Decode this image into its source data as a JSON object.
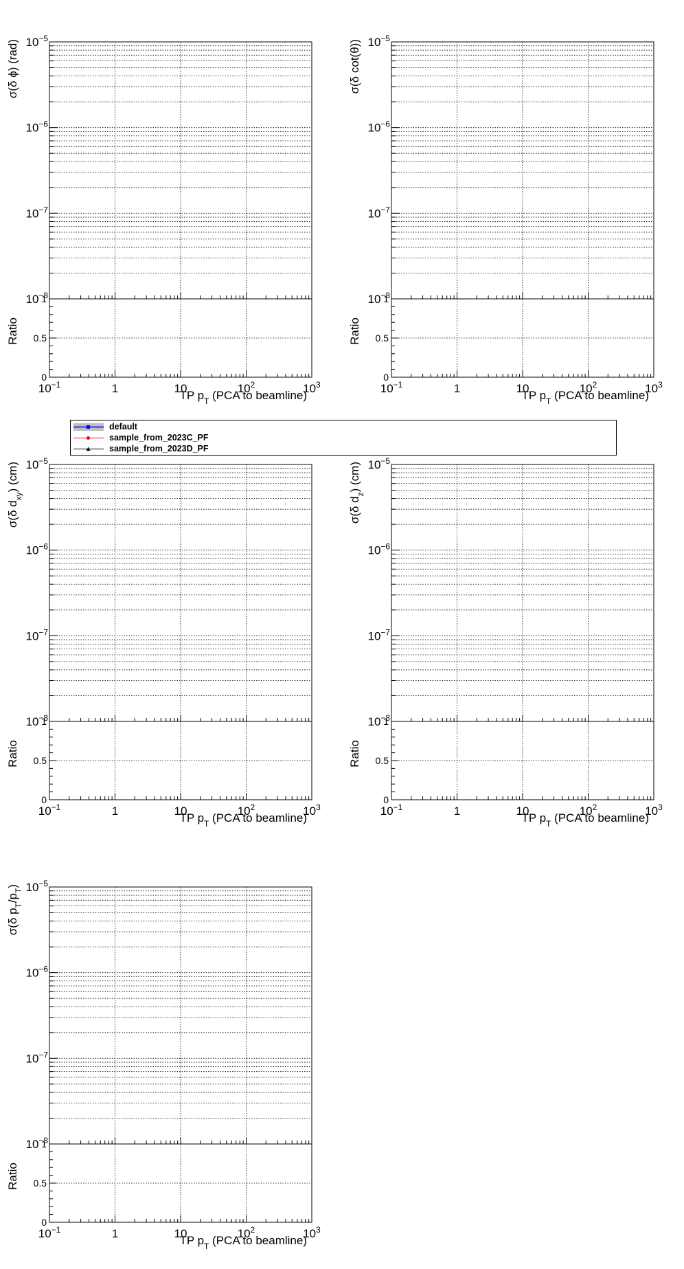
{
  "legend": {
    "entries": [
      {
        "label": "default",
        "color": "#0000ff",
        "band": "#bfbfbf",
        "marker": "square"
      },
      {
        "label": "sample_from_2023C_PF",
        "color": "#ff0000",
        "marker": "circle"
      },
      {
        "label": "sample_from_2023D_PF",
        "color": "#000000",
        "marker": "triangle"
      }
    ]
  },
  "chart_data": [
    {
      "type": "line",
      "ylabel_parts": [
        "σ(δ ϕ) (rad)"
      ],
      "xlabel_parts": [
        "TP p",
        "T",
        " (PCA to beamline)"
      ],
      "xscale": "log",
      "yscale": "log",
      "xlim": [
        0.1,
        1000
      ],
      "ylim": [
        1e-08,
        1e-05
      ],
      "x_tick_labels": [
        [
          "10",
          "−1"
        ],
        [
          "1",
          ""
        ],
        [
          "10",
          ""
        ],
        [
          "10",
          "2"
        ],
        [
          "10",
          "3"
        ]
      ],
      "y_tick_labels": [
        [
          "10",
          "−8"
        ],
        [
          "10",
          "−7"
        ],
        [
          "10",
          "−6"
        ],
        [
          "10",
          "−5"
        ]
      ],
      "ratio": {
        "ylabel": "Ratio",
        "ylim": [
          0,
          1
        ],
        "tick_labels": [
          "0",
          "0.5",
          "1"
        ]
      },
      "grid": true,
      "series": []
    },
    {
      "type": "line",
      "ylabel_parts": [
        "σ(δ cot(θ))"
      ],
      "xlabel_parts": [
        "TP p",
        "T",
        " (PCA to beamline)"
      ],
      "xscale": "log",
      "yscale": "log",
      "xlim": [
        0.1,
        1000
      ],
      "ylim": [
        1e-08,
        1e-05
      ],
      "x_tick_labels": [
        [
          "10",
          "−1"
        ],
        [
          "1",
          ""
        ],
        [
          "10",
          ""
        ],
        [
          "10",
          "2"
        ],
        [
          "10",
          "3"
        ]
      ],
      "y_tick_labels": [
        [
          "10",
          "−8"
        ],
        [
          "10",
          "−7"
        ],
        [
          "10",
          "−6"
        ],
        [
          "10",
          "−5"
        ]
      ],
      "ratio": {
        "ylabel": "Ratio",
        "ylim": [
          0,
          1
        ],
        "tick_labels": [
          "0",
          "0.5",
          "1"
        ]
      },
      "grid": true,
      "series": []
    },
    {
      "type": "line",
      "ylabel_parts": [
        "σ(δ d",
        "xy",
        ") (cm)"
      ],
      "xlabel_parts": [
        "TP p",
        "T",
        " (PCA to beamline)"
      ],
      "xscale": "log",
      "yscale": "log",
      "xlim": [
        0.1,
        1000
      ],
      "ylim": [
        1e-08,
        1e-05
      ],
      "x_tick_labels": [
        [
          "10",
          "−1"
        ],
        [
          "1",
          ""
        ],
        [
          "10",
          ""
        ],
        [
          "10",
          "2"
        ],
        [
          "10",
          "3"
        ]
      ],
      "y_tick_labels": [
        [
          "10",
          "−8"
        ],
        [
          "10",
          "−7"
        ],
        [
          "10",
          "−6"
        ],
        [
          "10",
          "−5"
        ]
      ],
      "ratio": {
        "ylabel": "Ratio",
        "ylim": [
          0,
          1
        ],
        "tick_labels": [
          "0",
          "0.5",
          "1"
        ]
      },
      "grid": true,
      "series": []
    },
    {
      "type": "line",
      "ylabel_parts": [
        "σ(δ d",
        "z",
        ") (cm)"
      ],
      "xlabel_parts": [
        "TP p",
        "T",
        " (PCA to beamline)"
      ],
      "xscale": "log",
      "yscale": "log",
      "xlim": [
        0.1,
        1000
      ],
      "ylim": [
        1e-08,
        1e-05
      ],
      "x_tick_labels": [
        [
          "10",
          "−1"
        ],
        [
          "1",
          ""
        ],
        [
          "10",
          ""
        ],
        [
          "10",
          "2"
        ],
        [
          "10",
          "3"
        ]
      ],
      "y_tick_labels": [
        [
          "10",
          "−8"
        ],
        [
          "10",
          "−7"
        ],
        [
          "10",
          "−6"
        ],
        [
          "10",
          "−5"
        ]
      ],
      "ratio": {
        "ylabel": "Ratio",
        "ylim": [
          0,
          1
        ],
        "tick_labels": [
          "0",
          "0.5",
          "1"
        ]
      },
      "grid": true,
      "series": []
    },
    {
      "type": "line",
      "ylabel_parts": [
        "σ(δ p",
        "T",
        "/p",
        "T",
        ")"
      ],
      "xlabel_parts": [
        "TP p",
        "T",
        " (PCA to beamline)"
      ],
      "xscale": "log",
      "yscale": "log",
      "xlim": [
        0.1,
        1000
      ],
      "ylim": [
        1e-08,
        1e-05
      ],
      "x_tick_labels": [
        [
          "10",
          "−1"
        ],
        [
          "1",
          ""
        ],
        [
          "10",
          ""
        ],
        [
          "10",
          "2"
        ],
        [
          "10",
          "3"
        ]
      ],
      "y_tick_labels": [
        [
          "10",
          "−8"
        ],
        [
          "10",
          "−7"
        ],
        [
          "10",
          "−6"
        ],
        [
          "10",
          "−5"
        ]
      ],
      "ratio": {
        "ylabel": "Ratio",
        "ylim": [
          0,
          1
        ],
        "tick_labels": [
          "0",
          "0.5",
          "1"
        ]
      },
      "grid": true,
      "series": []
    }
  ]
}
